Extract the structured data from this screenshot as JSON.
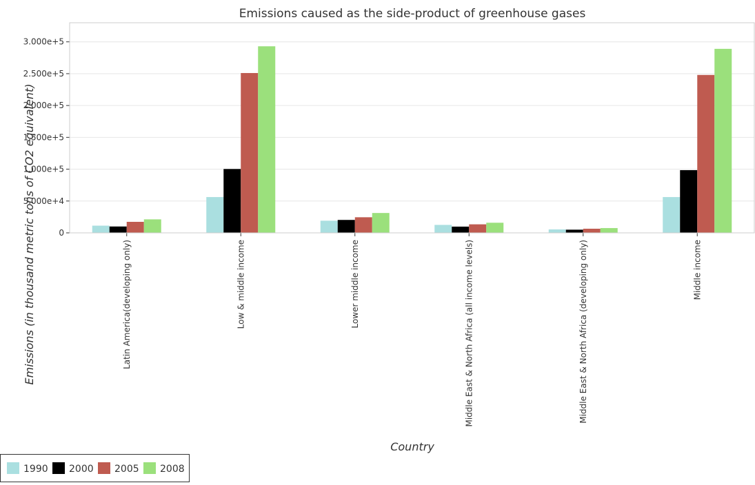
{
  "chart_data": {
    "type": "bar",
    "title": "Emissions caused as the side-product of greenhouse gases",
    "xlabel": "Country",
    "ylabel": "Emissions (in thousand metric tons of CO2 equivalent)",
    "ylim": [
      0,
      330000
    ],
    "yticks": [
      0,
      50000,
      100000,
      150000,
      200000,
      250000,
      300000
    ],
    "ytick_labels": [
      "0",
      "5.000e+4",
      "1.000e+5",
      "1.500e+5",
      "2.000e+5",
      "2.500e+5",
      "3.000e+5"
    ],
    "grid": true,
    "legend_position": "bottom-left",
    "categories": [
      "Latin America(developing only)",
      "Low & middle income",
      "Lower middle income",
      "Middle East & North Africa (all income levels)",
      "Middle East & North Africa (developing only)",
      "Middle income"
    ],
    "series": [
      {
        "name": "1990",
        "color": "#aadfe0",
        "values": [
          11300,
          56200,
          19100,
          12500,
          5400,
          56200
        ]
      },
      {
        "name": "2000",
        "color": "#000000",
        "values": [
          10000,
          100300,
          20300,
          9800,
          5000,
          98500
        ]
      },
      {
        "name": "2005",
        "color": "#bf5b50",
        "values": [
          17300,
          251000,
          24500,
          13400,
          6500,
          248000
        ]
      },
      {
        "name": "2008",
        "color": "#9be07c",
        "values": [
          21200,
          293000,
          31200,
          15900,
          7500,
          289000
        ]
      }
    ]
  }
}
